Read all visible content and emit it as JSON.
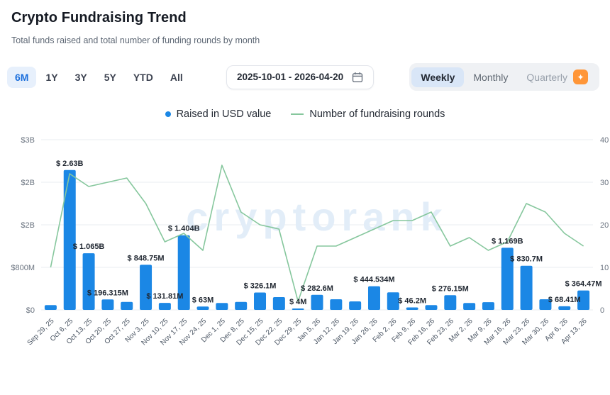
{
  "header": {
    "title": "Crypto Fundraising Trend",
    "subtitle": "Total funds raised and total number of funding rounds by month"
  },
  "controls": {
    "ranges": [
      {
        "label": "6M",
        "active": true
      },
      {
        "label": "1Y",
        "active": false
      },
      {
        "label": "3Y",
        "active": false
      },
      {
        "label": "5Y",
        "active": false
      },
      {
        "label": "YTD",
        "active": false
      },
      {
        "label": "All",
        "active": false
      }
    ],
    "date_range": {
      "value": "2025-10-01 - 2026-04-20"
    },
    "granularity": {
      "options": [
        {
          "label": "Weekly",
          "selected": true,
          "muted": false,
          "premium": false
        },
        {
          "label": "Monthly",
          "selected": false,
          "muted": false,
          "premium": false
        },
        {
          "label": "Quarterly",
          "selected": false,
          "muted": true,
          "premium": true
        }
      ]
    }
  },
  "legend": [
    {
      "label": "Raised in USD value",
      "type": "dot",
      "color": "#1b87e5"
    },
    {
      "label": "Number of fundraising rounds",
      "type": "line",
      "color": "#86c79d"
    }
  ],
  "chart_data": {
    "type": "bar",
    "title": "Crypto Fundraising Trend",
    "categories": [
      "Sep 29, 25",
      "Oct 6, 25",
      "Oct 13, 25",
      "Oct 20, 25",
      "Oct 27, 25",
      "Nov 3, 25",
      "Nov 10, 25",
      "Nov 17, 25",
      "Nov 24, 25",
      "Dec 1, 25",
      "Dec 8, 25",
      "Dec 15, 25",
      "Dec 22, 25",
      "Dec 29, 25",
      "Jan 5, 26",
      "Jan 12, 26",
      "Jan 19, 26",
      "Jan 26, 26",
      "Feb 2, 26",
      "Feb 9, 26",
      "Feb 16, 26",
      "Feb 23, 26",
      "Mar 2, 26",
      "Mar 9, 26",
      "Mar 16, 26",
      "Mar 23, 26",
      "Mar 30, 26",
      "Apr 6, 26",
      "Apr 13, 26"
    ],
    "series": [
      {
        "name": "Raised in USD value",
        "type": "bar",
        "axis": "left",
        "unit": "USD millions",
        "values": [
          90,
          2630,
          1065,
          196.315,
          150,
          848.75,
          131.81,
          1404,
          63,
          130,
          150,
          326.1,
          240,
          4,
          282.6,
          200,
          160,
          444.534,
          330,
          46.2,
          90,
          276.15,
          130,
          145,
          1169,
          830.7,
          200,
          68.41,
          364.47
        ],
        "labels": [
          null,
          "$ 2.63B",
          "$ 1.065B",
          "$ 196.315M",
          null,
          "$ 848.75M",
          "$ 131.81M",
          "$ 1.404B",
          "$ 63M",
          null,
          null,
          "$ 326.1M",
          null,
          "$ 4M",
          "$ 282.6M",
          null,
          null,
          "$ 444.534M",
          null,
          "$ 46.2M",
          null,
          "$ 276.15M",
          null,
          null,
          "$ 1.169B",
          "$ 830.7M",
          null,
          "$ 68.41M",
          "$ 364.47M"
        ]
      },
      {
        "name": "Number of fundraising rounds",
        "type": "line",
        "axis": "right",
        "unit": "rounds",
        "values": [
          10,
          32,
          29,
          30,
          31,
          25,
          16,
          18,
          14,
          34,
          23,
          20,
          19,
          2,
          15,
          15,
          17,
          19,
          21,
          21,
          23,
          15,
          17,
          14,
          16,
          25,
          23,
          18,
          15
        ]
      }
    ],
    "left_axis_ticks": [
      "$3B",
      "$2B",
      "$2B",
      "$800M",
      "$0"
    ],
    "right_axis_ticks": [
      "40",
      "30",
      "20",
      "10",
      "0"
    ],
    "left_axis_max_musd": 3200,
    "right_axis_max": 40,
    "grid": true,
    "legend_position": "top",
    "watermark": "cryptorank",
    "colors": {
      "bar": "#1b87e5",
      "line": "#86c79d",
      "grid": "#eaedf1",
      "axis_text": "#6b7480",
      "x_text": "#4a5563",
      "bar_label": "#1f2630",
      "watermark": "#e2edf8"
    }
  }
}
